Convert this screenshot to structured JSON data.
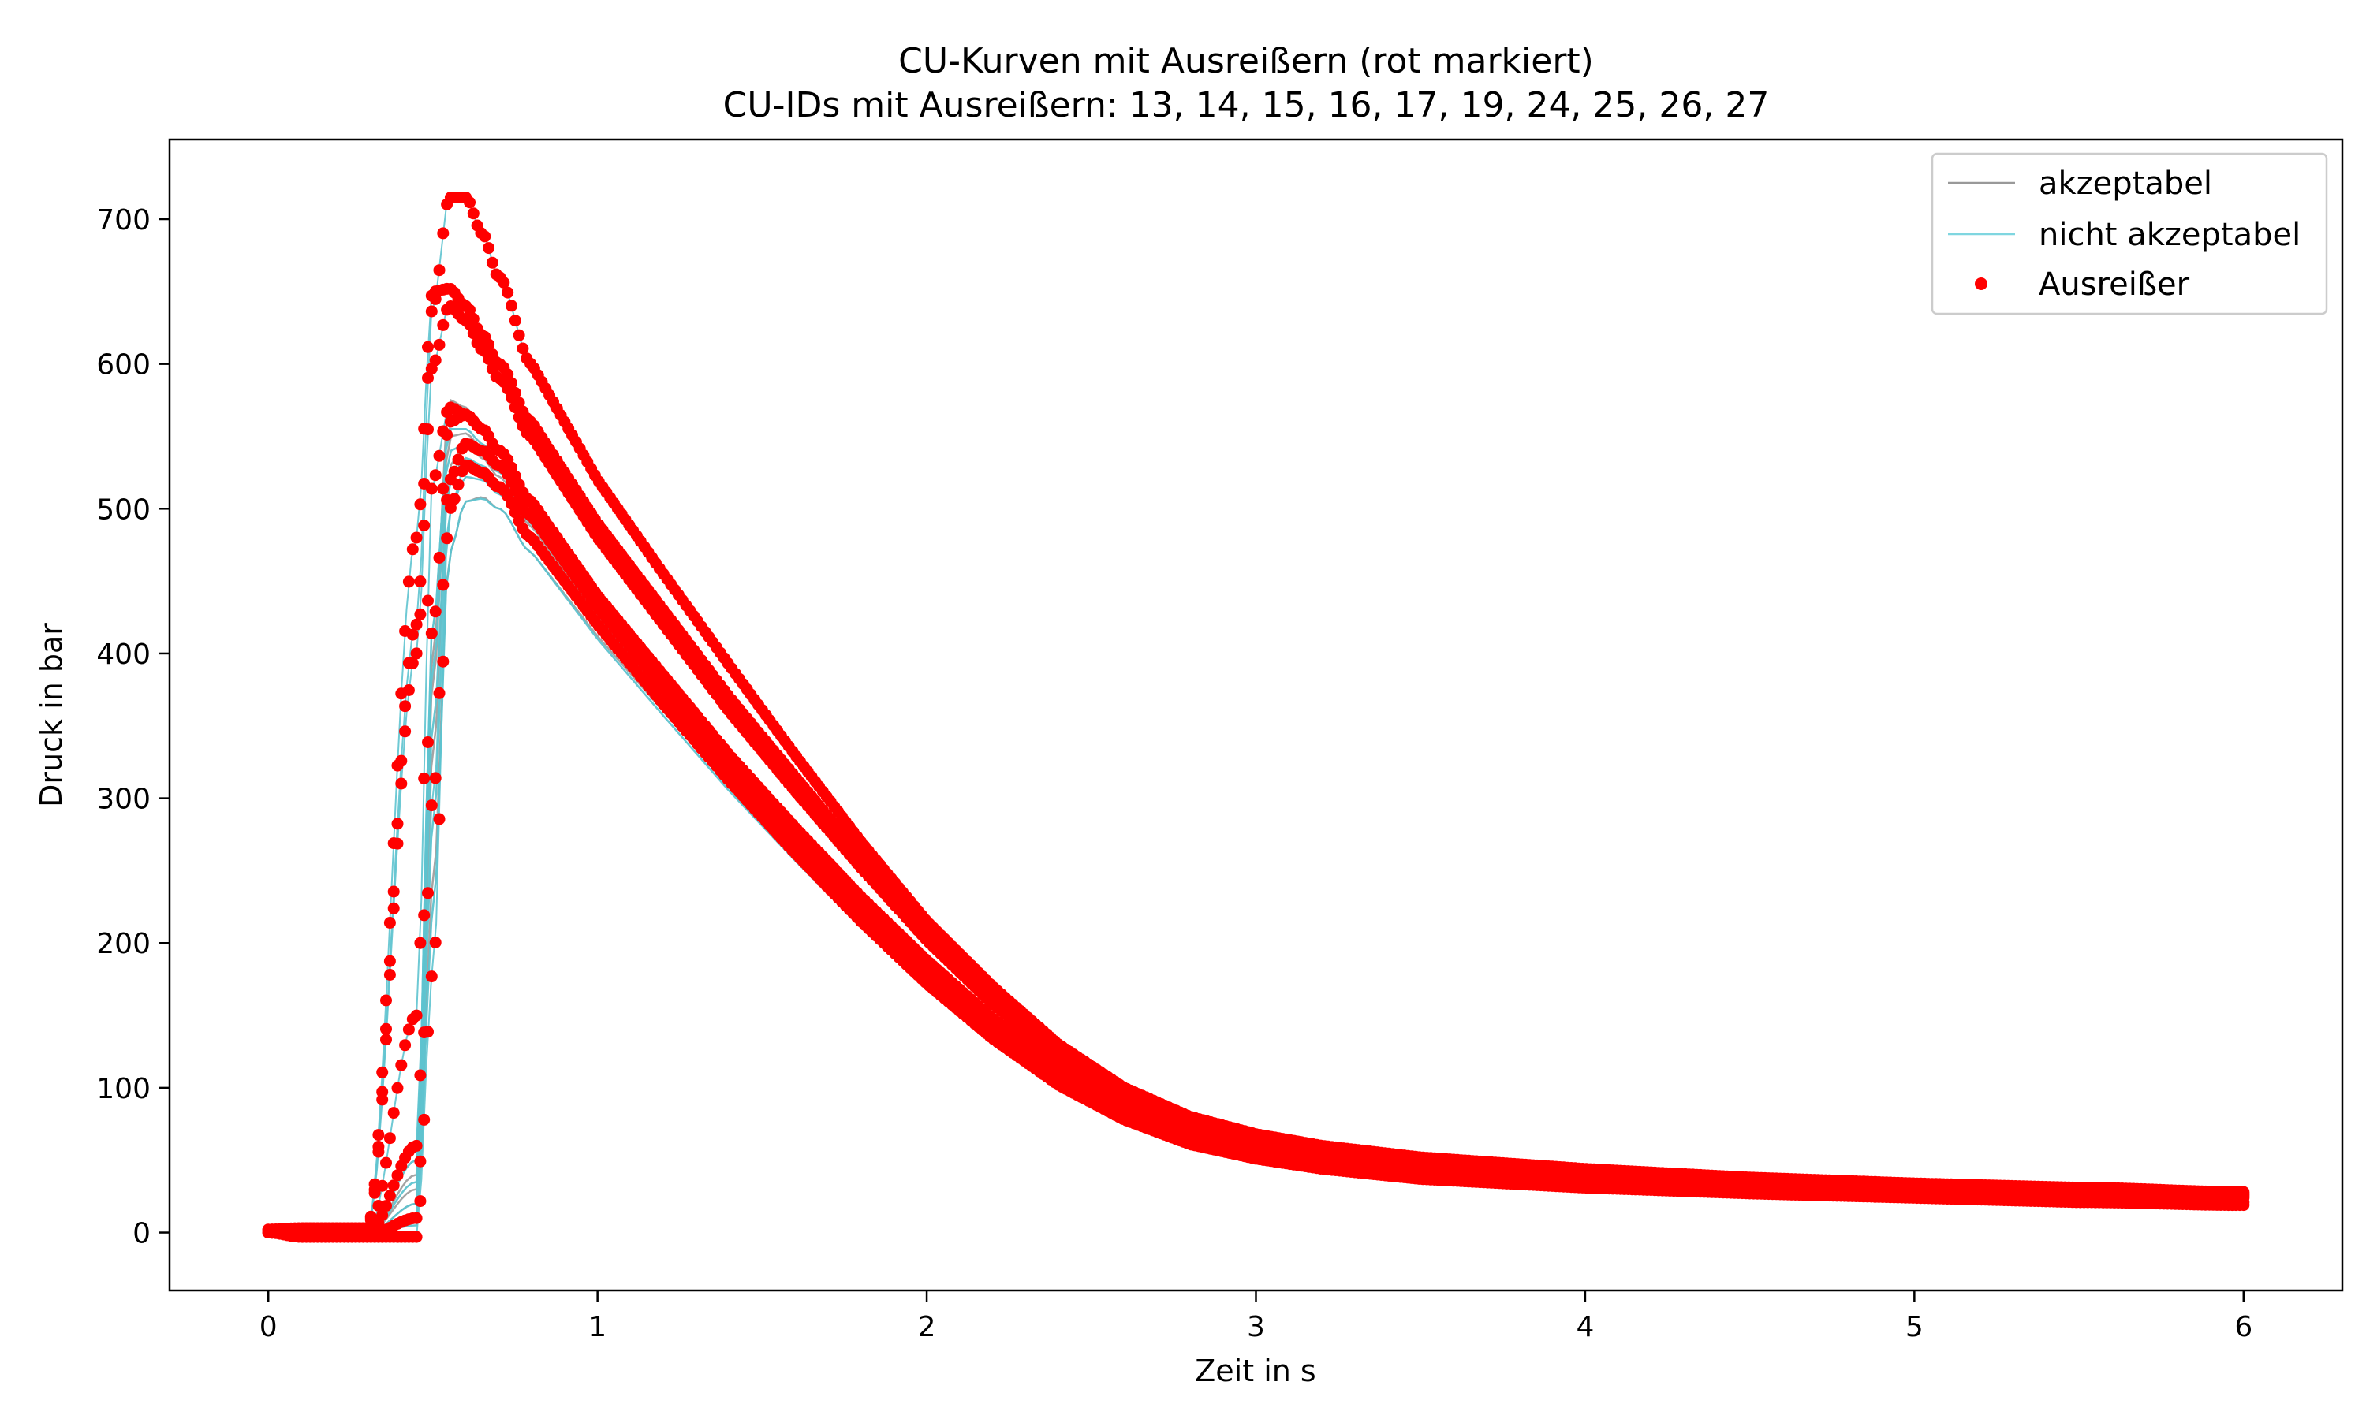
{
  "chart_data": {
    "type": "line",
    "title": "CU-Kurven mit Ausreißern (rot markiert)",
    "subtitle": "CU-IDs mit Ausreißern: 13, 14, 15, 16, 17, 19, 24, 25, 26, 27",
    "xlabel": "Zeit in s",
    "ylabel": "Druck in bar",
    "xlim": [
      -0.3,
      6.3
    ],
    "ylim": [
      -40,
      755
    ],
    "xticks": [
      0,
      1,
      2,
      3,
      4,
      5,
      6
    ],
    "yticks": [
      0,
      100,
      200,
      300,
      400,
      500,
      600,
      700
    ],
    "grid": false,
    "legend": {
      "placement": "top-right",
      "entries": [
        {
          "label": "akzeptabel",
          "kind": "line",
          "color": "#999999"
        },
        {
          "label": "nicht akzeptabel",
          "kind": "line",
          "color": "#7fd6e0"
        },
        {
          "label": "Ausreißer",
          "kind": "marker",
          "color": "#ff0000"
        }
      ]
    },
    "colors": {
      "akzeptabel": "#9a9a9a",
      "nicht_akzeptabel": "#5ec3cf",
      "ausreisser": "#ff0000"
    },
    "curve_x": [
      0,
      0.1,
      0.2,
      0.3,
      0.45,
      0.5,
      0.55,
      0.6,
      0.65,
      0.7,
      0.8,
      1.0,
      1.2,
      1.4,
      1.6,
      1.8,
      2.0,
      2.2,
      2.4,
      2.6,
      2.8,
      3.0,
      3.2,
      3.5,
      4.0,
      4.5,
      5.0,
      5.5,
      6.0
    ],
    "series": [
      {
        "group": "ausreisser",
        "y": [
          2,
          3,
          3,
          3,
          420,
          640,
          715,
          715,
          690,
          660,
          600,
          520,
          455,
          392,
          330,
          270,
          215,
          170,
          130,
          100,
          80,
          68,
          60,
          52,
          44,
          38,
          34,
          31,
          28
        ]
      },
      {
        "group": "ausreisser",
        "y": [
          2,
          3,
          3,
          3,
          480,
          650,
          652,
          640,
          620,
          600,
          560,
          490,
          430,
          370,
          315,
          260,
          208,
          163,
          125,
          97,
          78,
          65,
          57,
          50,
          42,
          37,
          33,
          30,
          27
        ]
      },
      {
        "group": "ausreisser",
        "y": [
          2,
          2,
          2,
          2,
          400,
          600,
          640,
          630,
          610,
          590,
          550,
          480,
          420,
          360,
          305,
          252,
          202,
          158,
          122,
          95,
          76,
          64,
          56,
          49,
          41,
          36,
          32,
          29,
          26
        ]
      },
      {
        "group": "ausreisser",
        "y": [
          0,
          -2,
          -2,
          -2,
          150,
          520,
          570,
          565,
          555,
          540,
          505,
          440,
          385,
          330,
          280,
          232,
          188,
          148,
          114,
          88,
          70,
          59,
          52,
          45,
          38,
          33,
          29,
          27,
          25
        ]
      },
      {
        "group": "ausreisser",
        "y": [
          0,
          -2,
          -2,
          -2,
          60,
          420,
          560,
          565,
          555,
          540,
          505,
          440,
          383,
          328,
          278,
          230,
          186,
          146,
          112,
          86,
          68,
          57,
          50,
          43,
          36,
          31,
          28,
          26,
          24
        ]
      },
      {
        "group": "ausreisser",
        "y": [
          0,
          -2,
          -2,
          -2,
          10,
          300,
          520,
          545,
          540,
          530,
          495,
          432,
          376,
          322,
          272,
          224,
          181,
          141,
          108,
          83,
          66,
          55,
          48,
          41,
          34,
          29,
          26,
          23,
          21
        ]
      },
      {
        "group": "ausreisser",
        "y": [
          0,
          -3,
          -3,
          -3,
          -3,
          180,
          500,
          530,
          525,
          515,
          480,
          420,
          365,
          312,
          262,
          215,
          172,
          134,
          102,
          78,
          61,
          51,
          44,
          37,
          31,
          27,
          24,
          21,
          19
        ]
      },
      {
        "group": "akzeptabel",
        "y": [
          0,
          -1,
          -1,
          -1,
          40,
          400,
          575,
          570,
          555,
          538,
          502,
          436,
          378,
          323,
          272,
          224,
          182,
          143,
          110,
          85,
          68,
          58,
          51,
          45,
          38,
          33,
          29,
          27,
          25
        ]
      },
      {
        "group": "akzeptabel",
        "y": [
          0,
          -1,
          -1,
          -1,
          20,
          330,
          530,
          545,
          535,
          522,
          488,
          425,
          370,
          316,
          266,
          219,
          177,
          139,
          107,
          82,
          65,
          55,
          48,
          42,
          35,
          30,
          27,
          25,
          23
        ]
      },
      {
        "group": "akzeptabel",
        "y": [
          0,
          -1,
          -1,
          -1,
          10,
          240,
          470,
          505,
          508,
          500,
          470,
          412,
          360,
          308,
          260,
          214,
          173,
          136,
          104,
          80,
          63,
          53,
          46,
          40,
          34,
          29,
          26,
          24,
          22
        ]
      },
      {
        "group": "akzeptabel",
        "y": [
          0,
          -1,
          -1,
          -1,
          30,
          380,
          550,
          552,
          542,
          528,
          494,
          430,
          373,
          319,
          269,
          221,
          179,
          141,
          108,
          83,
          66,
          56,
          49,
          43,
          36,
          31,
          28,
          26,
          24
        ]
      },
      {
        "group": "nicht_akzeptabel",
        "y": [
          0,
          -1,
          -1,
          -1,
          50,
          420,
          555,
          555,
          545,
          530,
          496,
          432,
          375,
          320,
          270,
          222,
          180,
          141,
          108,
          83,
          66,
          56,
          49,
          43,
          36,
          31,
          28,
          26,
          24
        ]
      },
      {
        "group": "nicht_akzeptabel",
        "y": [
          0,
          -1,
          -1,
          -1,
          20,
          350,
          520,
          535,
          530,
          518,
          484,
          422,
          367,
          313,
          264,
          217,
          176,
          138,
          106,
          81,
          64,
          54,
          47,
          41,
          35,
          30,
          27,
          25,
          23
        ]
      },
      {
        "group": "nicht_akzeptabel",
        "y": [
          0,
          -1,
          -1,
          -1,
          10,
          280,
          500,
          522,
          520,
          510,
          478,
          417,
          362,
          309,
          260,
          214,
          173,
          136,
          104,
          80,
          63,
          53,
          46,
          40,
          34,
          29,
          26,
          24,
          22
        ]
      },
      {
        "group": "nicht_akzeptabel",
        "y": [
          0,
          -1,
          -1,
          -1,
          5,
          220,
          470,
          505,
          507,
          500,
          470,
          410,
          357,
          305,
          257,
          211,
          171,
          134,
          103,
          79,
          62,
          52,
          45,
          39,
          33,
          28,
          25,
          23,
          21
        ]
      },
      {
        "group": "nicht_akzeptabel",
        "y": [
          0,
          -1,
          -1,
          -1,
          35,
          390,
          540,
          545,
          538,
          525,
          490,
          427,
          371,
          317,
          267,
          220,
          178,
          140,
          107,
          82,
          65,
          55,
          48,
          42,
          35,
          30,
          27,
          25,
          23
        ]
      }
    ]
  }
}
